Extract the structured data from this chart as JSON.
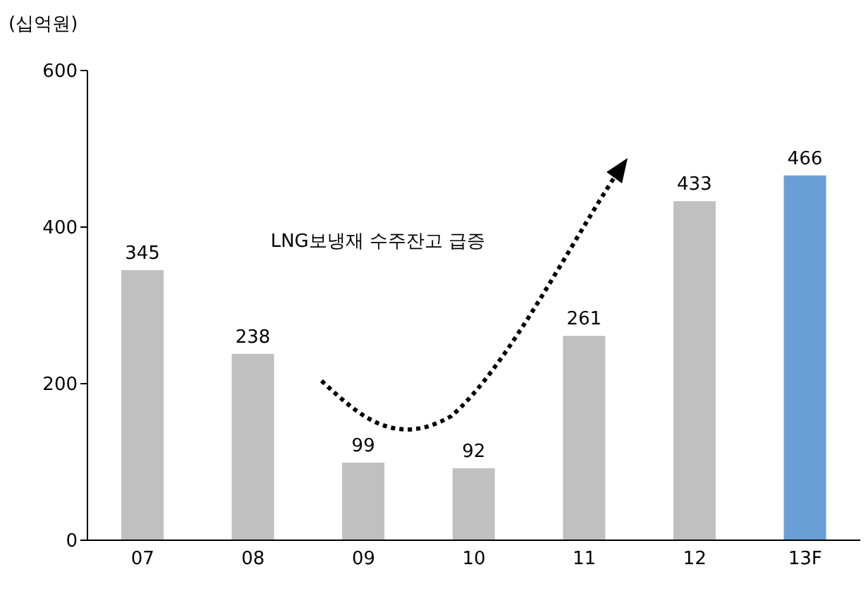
{
  "chart_data": {
    "type": "bar",
    "ylabel": "(십억원)",
    "categories": [
      "07",
      "08",
      "09",
      "10",
      "11",
      "12",
      "13F"
    ],
    "values": [
      345,
      238,
      99,
      92,
      261,
      433,
      466
    ],
    "colors": [
      "#c0c0c0",
      "#c0c0c0",
      "#c0c0c0",
      "#c0c0c0",
      "#c0c0c0",
      "#c0c0c0",
      "#6a9fd6"
    ],
    "ylim": [
      0,
      600
    ],
    "yticks": [
      0,
      200,
      400,
      600
    ],
    "grid": false,
    "legend": false,
    "data_labels": true,
    "annotations": [
      "LNG보냉재 수주잔고 급증"
    ]
  }
}
